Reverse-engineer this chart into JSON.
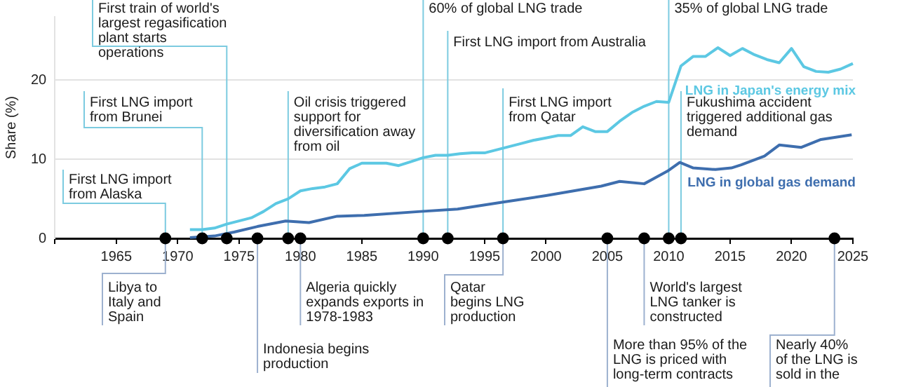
{
  "chart_data": {
    "type": "line",
    "ylabel": "Share (%)",
    "xlim": [
      1960,
      2025
    ],
    "xticks": [
      {
        "value": 1960,
        "label": null
      },
      1965,
      1970,
      1975,
      1980,
      1985,
      1990,
      1995,
      2000,
      2005,
      2010,
      2015,
      2020,
      2025
    ],
    "ylim": [
      0,
      28
    ],
    "yticks": [
      0,
      10,
      20
    ],
    "grid": "y",
    "legend": false,
    "series": [
      {
        "name": "LNG in Japan's energy mix",
        "color": "#5cc8e3",
        "x": [
          1971,
          1972,
          1973,
          1974,
          1975,
          1976,
          1977,
          1978,
          1979,
          1980,
          1981,
          1982,
          1983,
          1984,
          1985,
          1986,
          1987,
          1988,
          1989,
          1990,
          1991,
          1992,
          1993,
          1994,
          1995,
          1996,
          1997,
          1998,
          1999,
          2000,
          2001,
          2002,
          2003,
          2004,
          2005,
          2006,
          2007,
          2008,
          2009,
          2010,
          2011,
          2012,
          2013,
          2014,
          2015,
          2016,
          2017,
          2018,
          2019,
          2020,
          2021,
          2022,
          2023,
          2024,
          2025
        ],
        "values": [
          1.1,
          1.1,
          1.3,
          1.8,
          2.2,
          2.6,
          3.4,
          4.4,
          5.0,
          6.0,
          6.3,
          6.5,
          6.9,
          8.8,
          9.5,
          9.5,
          9.5,
          9.2,
          9.7,
          10.2,
          10.5,
          10.5,
          10.7,
          10.8,
          10.8,
          11.2,
          11.6,
          12.0,
          12.4,
          12.7,
          13.0,
          13.0,
          14.1,
          13.5,
          13.5,
          14.8,
          15.9,
          16.7,
          17.3,
          17.2,
          21.8,
          23.0,
          23.0,
          24.1,
          23.1,
          24.0,
          23.2,
          22.6,
          22.2,
          24.0,
          21.7,
          21.1,
          21.0,
          21.4,
          22.1
        ]
      },
      {
        "name": "LNG in global gas demand",
        "color": "#3e6eae",
        "x": [
          1971,
          1973,
          1974.6,
          1976.5,
          1978.8,
          1980.7,
          1983,
          1985.2,
          1989.8,
          1992.8,
          1996.6,
          2000,
          2004.5,
          2006,
          2008,
          2009.9,
          2010.9,
          2012,
          2013.8,
          2015.1,
          2015.9,
          2017.8,
          2019,
          2020.8,
          2022.4,
          2024.9
        ],
        "values": [
          0.1,
          0.3,
          0.8,
          1.5,
          2.2,
          2.0,
          2.8,
          2.9,
          3.4,
          3.7,
          4.6,
          5.4,
          6.6,
          7.2,
          6.9,
          8.5,
          9.6,
          8.9,
          8.7,
          8.9,
          9.3,
          10.4,
          11.8,
          11.5,
          12.5,
          13.1
        ]
      },
      {
        "type": "scatter",
        "color": "#000000",
        "x": [
          1969,
          1972,
          1974,
          1976.5,
          1979,
          1980,
          1990,
          1992,
          1996.5,
          2005,
          2008,
          2010,
          2011,
          2023.5
        ],
        "values": [
          0,
          0,
          0,
          0,
          0,
          0,
          0,
          0,
          0,
          0,
          0,
          0,
          0,
          0
        ]
      }
    ],
    "ref_lines": [
      {
        "axis": "x",
        "value": 1969,
        "label": "First LNG import from Alaska",
        "color": "#7ccbe0"
      },
      {
        "axis": "x",
        "value": 1972,
        "label": "First LNG import from Brunei",
        "color": "#7ccbe0"
      },
      {
        "axis": "x",
        "value": 1974,
        "label": "First train of world's largest regasification plant starts operations",
        "color": "#7ccbe0"
      },
      {
        "axis": "x",
        "value": 1979,
        "label": "Oil crisis triggered support for diversification away from oil",
        "color": "#7ccbe0"
      },
      {
        "axis": "x",
        "value": 1990,
        "label": "60% of global LNG trade",
        "color": "#7ccbe0"
      },
      {
        "axis": "x",
        "value": 1992,
        "label": "First LNG import from Australia",
        "color": "#7ccbe0"
      },
      {
        "axis": "x",
        "value": 1996.5,
        "label": "First LNG import from Qatar",
        "color": "#7ccbe0"
      },
      {
        "axis": "x",
        "value": 2010,
        "label": "35% of global LNG trade",
        "color": "#7ccbe0"
      },
      {
        "axis": "x",
        "value": 2011,
        "label": "Fukushima accident triggered additional gas demand",
        "color": "#7ccbe0"
      },
      {
        "axis": "x",
        "value": 1969,
        "label": "Libya to Italy and Spain",
        "color": "#9db1cf"
      },
      {
        "axis": "x",
        "value": 1976.5,
        "label": "Indonesia begins production",
        "color": "#9db1cf"
      },
      {
        "axis": "x",
        "value": 1980,
        "label": "Algeria quickly expands exports in 1978-1983",
        "color": "#9db1cf"
      },
      {
        "axis": "x",
        "value": 1996.5,
        "label": "Qatar begins LNG production",
        "color": "#9db1cf"
      },
      {
        "axis": "x",
        "value": 2005,
        "label": "More than 95% of the LNG is priced with long-term contracts",
        "color": "#9db1cf"
      },
      {
        "axis": "x",
        "value": 2008,
        "label": "World's largest LNG tanker is constructed",
        "color": "#9db1cf"
      },
      {
        "axis": "x",
        "value": 2023.5,
        "label": "Nearly 40% of the LNG is sold in the",
        "color": "#9db1cf"
      }
    ]
  }
}
